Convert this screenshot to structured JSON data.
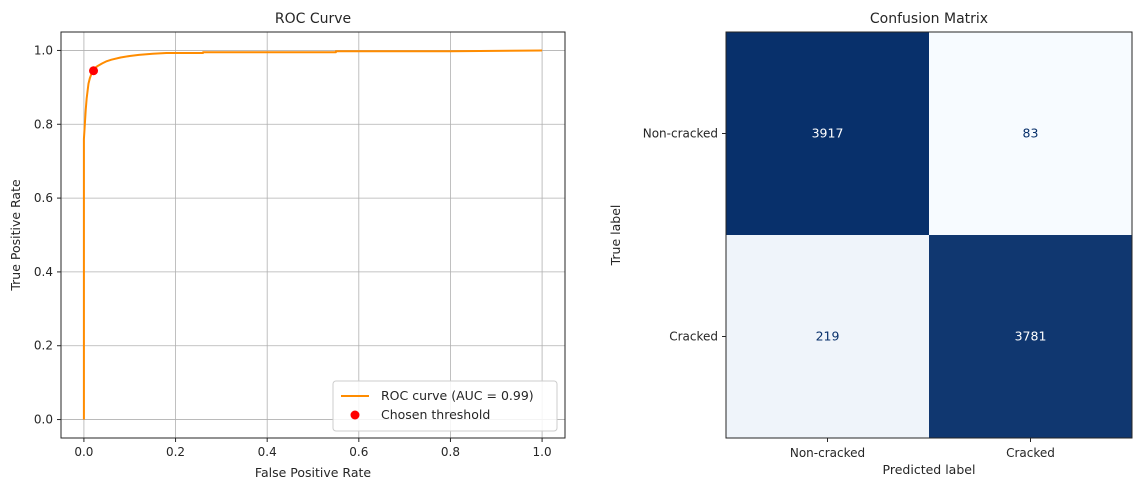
{
  "chart_data": [
    {
      "type": "line",
      "title": "ROC Curve",
      "xlabel": "False Positive Rate",
      "ylabel": "True Positive Rate",
      "xlim": [
        -0.05,
        1.05
      ],
      "ylim": [
        -0.05,
        1.05
      ],
      "xticks": [
        "0.0",
        "0.2",
        "0.4",
        "0.6",
        "0.8",
        "1.0"
      ],
      "yticks": [
        "0.0",
        "0.2",
        "0.4",
        "0.6",
        "0.8",
        "1.0"
      ],
      "grid": true,
      "legend_position": "bottom-right",
      "series": [
        {
          "name": "ROC curve (AUC = 0.99)",
          "color": "#ff8c00",
          "x": [
            0.0,
            0.0,
            0.002,
            0.004,
            0.006,
            0.008,
            0.01,
            0.013,
            0.016,
            0.02,
            0.025,
            0.03,
            0.04,
            0.05,
            0.06,
            0.08,
            0.1,
            0.12,
            0.15,
            0.18,
            0.2,
            0.26,
            0.26,
            0.55,
            0.55,
            0.8,
            1.0
          ],
          "y": [
            0.0,
            0.76,
            0.8,
            0.84,
            0.87,
            0.89,
            0.91,
            0.925,
            0.935,
            0.945,
            0.953,
            0.958,
            0.965,
            0.971,
            0.975,
            0.981,
            0.985,
            0.988,
            0.991,
            0.993,
            0.993,
            0.993,
            0.995,
            0.995,
            0.998,
            0.998,
            1.0
          ]
        }
      ],
      "marker": {
        "name": "Chosen threshold",
        "x": 0.021,
        "y": 0.945,
        "color": "#ff0000"
      }
    },
    {
      "type": "heatmap",
      "title": "Confusion Matrix",
      "xlabel": "Predicted label",
      "ylabel": "True label",
      "x_categories": [
        "Non-cracked",
        "Cracked"
      ],
      "y_categories": [
        "Non-cracked",
        "Cracked"
      ],
      "values": [
        [
          3917,
          83
        ],
        [
          219,
          3781
        ]
      ],
      "colormap": "Blues",
      "colors": {
        "low": "#f7fbff",
        "high": "#08306b"
      }
    }
  ]
}
